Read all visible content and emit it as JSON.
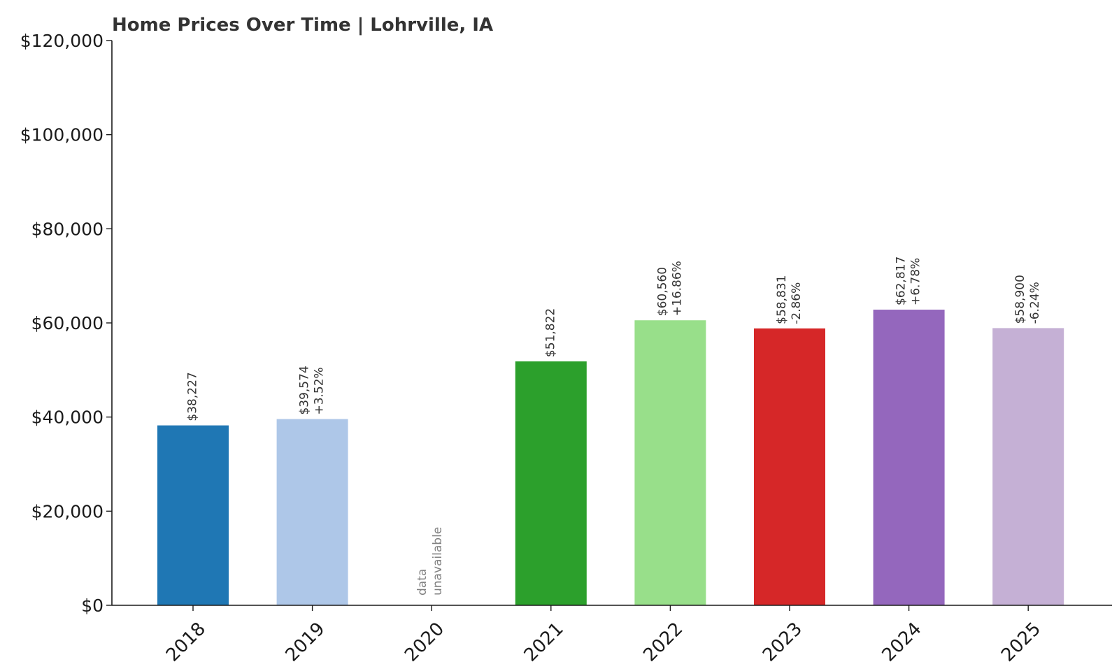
{
  "chart_data": {
    "type": "bar",
    "title": "Home Prices Over Time | Lohrville, IA",
    "xlabel": "",
    "ylabel": "",
    "ylim": [
      0,
      120000
    ],
    "yticks": [
      0,
      20000,
      40000,
      60000,
      80000,
      100000,
      120000
    ],
    "ytick_labels": [
      "$0",
      "$20,000",
      "$40,000",
      "$60,000",
      "$80,000",
      "$100,000",
      "$120,000"
    ],
    "grid": false,
    "legend": "none",
    "categories": [
      "2018",
      "2019",
      "2020",
      "2021",
      "2022",
      "2023",
      "2024",
      "2025"
    ],
    "values": [
      38227,
      39574,
      null,
      51822,
      60560,
      58831,
      62817,
      58900
    ],
    "value_labels": [
      "$38,227",
      "$39,574",
      "",
      "$51,822",
      "$60,560",
      "$58,831",
      "$62,817",
      "$58,900"
    ],
    "change_labels": [
      "",
      "+3.52%",
      "",
      "",
      "+16.86%",
      "-2.86%",
      "+6.78%",
      "-6.24%"
    ],
    "missing_label": [
      "data",
      "unavailable"
    ],
    "colors": [
      "#1f77b4",
      "#aec7e8",
      "#ff7f0e",
      "#2ca02c",
      "#98df8a",
      "#d62728",
      "#9467bd",
      "#c5b0d5"
    ]
  }
}
